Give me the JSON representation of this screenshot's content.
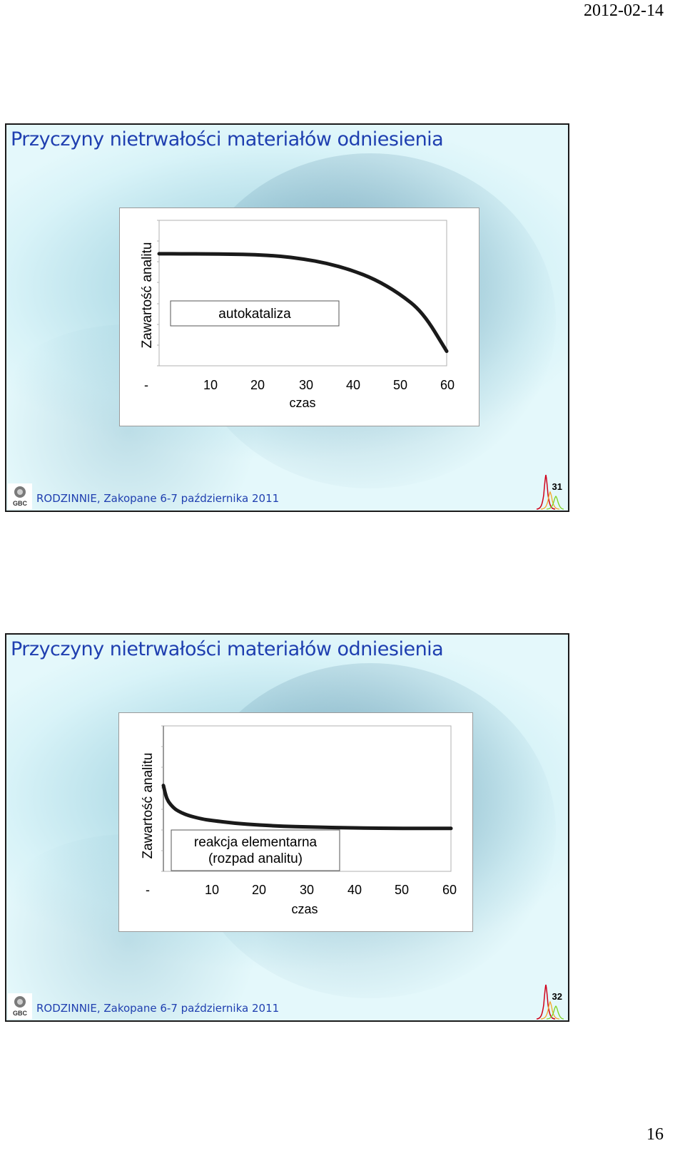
{
  "page": {
    "date": "2012-02-14",
    "number": "16"
  },
  "slides": [
    {
      "title": "Przyczyny nietrwałości materiałów odniesienia",
      "footer": "RODZINNIE, Zakopane 6-7 października 2011",
      "logo_text": "GBC",
      "slide_number": "31",
      "chart_data": {
        "type": "line",
        "ylabel": "Zawartość analitu",
        "xlabel": "czas",
        "x_ticks": [
          "-",
          "10",
          "20",
          "30",
          "40",
          "50",
          "60"
        ],
        "xlim": [
          0,
          60
        ],
        "ylim": [
          0,
          10
        ],
        "annotation": [
          "autokataliza"
        ],
        "series": [
          {
            "x": [
              0,
              5,
              10,
              15,
              20,
              25,
              30,
              35,
              40,
              45,
              50,
              55,
              60
            ],
            "values": [
              7.7,
              7.7,
              7.69,
              7.67,
              7.64,
              7.55,
              7.35,
              7.05,
              6.6,
              5.95,
              5.0,
              3.7,
              1.0
            ]
          }
        ],
        "grid": false
      }
    },
    {
      "title": "Przyczyny nietrwałości materiałów odniesienia",
      "footer": "RODZINNIE, Zakopane 6-7 października 2011",
      "logo_text": "GBC",
      "slide_number": "32",
      "chart_data": {
        "type": "line",
        "ylabel": "Zawartość analitu",
        "xlabel": "czas",
        "x_ticks": [
          "-",
          "10",
          "20",
          "30",
          "40",
          "50",
          "60"
        ],
        "xlim": [
          0,
          60
        ],
        "ylim": [
          0,
          10
        ],
        "annotation": [
          "reakcja elementarna",
          "(rozpad analitu)"
        ],
        "series": [
          {
            "x": [
              0,
              0.5,
              1,
              2,
              3,
              5,
              8,
              10,
              15,
              20,
              25,
              30,
              40,
              50,
              60
            ],
            "values": [
              5.9,
              5.2,
              4.8,
              4.4,
              4.15,
              3.85,
              3.6,
              3.5,
              3.3,
              3.18,
              3.1,
              3.05,
              2.98,
              2.95,
              2.95
            ]
          }
        ],
        "grid": false
      }
    }
  ],
  "colors": {
    "title": "#1f3fb0",
    "curve": "#1a1a1a",
    "frame": "#1a1a1a"
  }
}
